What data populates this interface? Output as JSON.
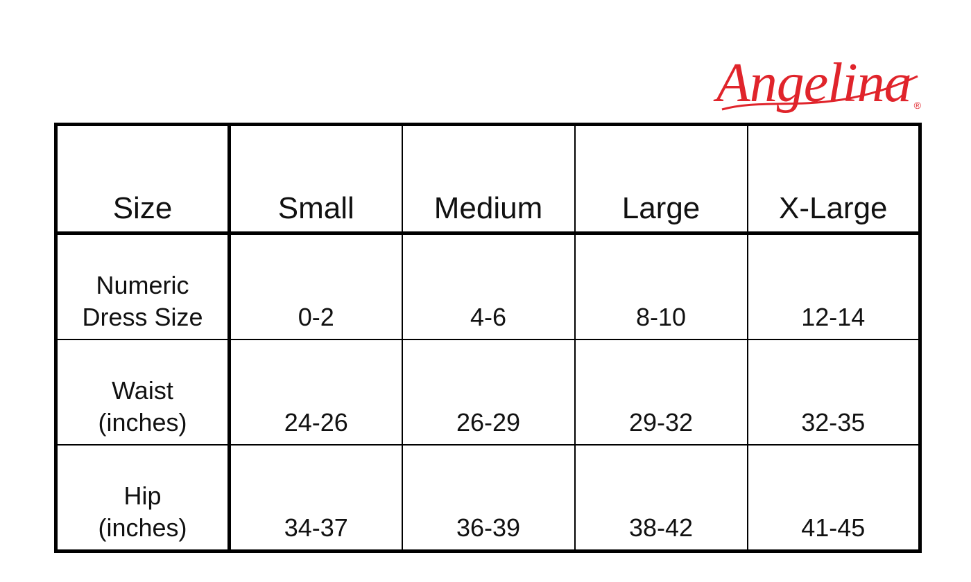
{
  "brand": {
    "logo_text": "Angelina",
    "registered_mark": "®",
    "color": "#e0242b"
  },
  "table": {
    "headers": [
      "Size",
      "Small",
      "Medium",
      "Large",
      "X-Large"
    ],
    "rows": [
      {
        "label_line1": "Numeric",
        "label_line2": "Dress Size",
        "values": [
          "0-2",
          "4-6",
          "8-10",
          "12-14"
        ]
      },
      {
        "label_line1": "Waist",
        "label_line2": "(inches)",
        "values": [
          "24-26",
          "26-29",
          "29-32",
          "32-35"
        ]
      },
      {
        "label_line1": "Hip",
        "label_line2": "(inches)",
        "values": [
          "34-37",
          "36-39",
          "38-42",
          "41-45"
        ]
      }
    ]
  }
}
